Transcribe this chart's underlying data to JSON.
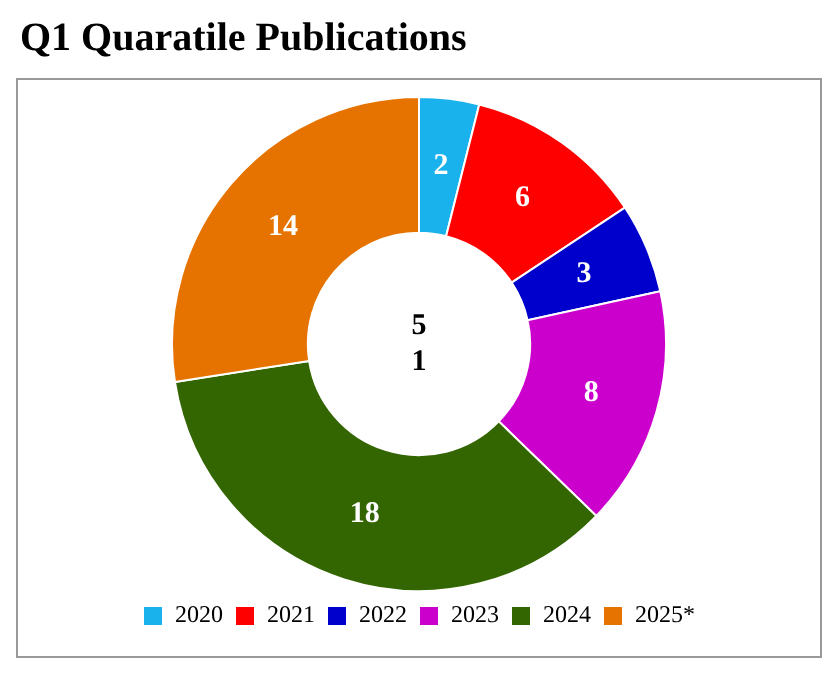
{
  "chart_data": {
    "type": "donut",
    "title": "Q1 Quaratile Publications",
    "categories": [
      "2020",
      "2021",
      "2022",
      "2023",
      "2024",
      "2025*"
    ],
    "values": [
      2,
      6,
      3,
      8,
      18,
      14
    ],
    "colors": [
      "#1ab2ec",
      "#ff0000",
      "#0000cc",
      "#cc00cc",
      "#336600",
      "#e67300"
    ],
    "data_labels": true,
    "legend": "bottom",
    "annotations": [
      "5",
      "1"
    ]
  }
}
